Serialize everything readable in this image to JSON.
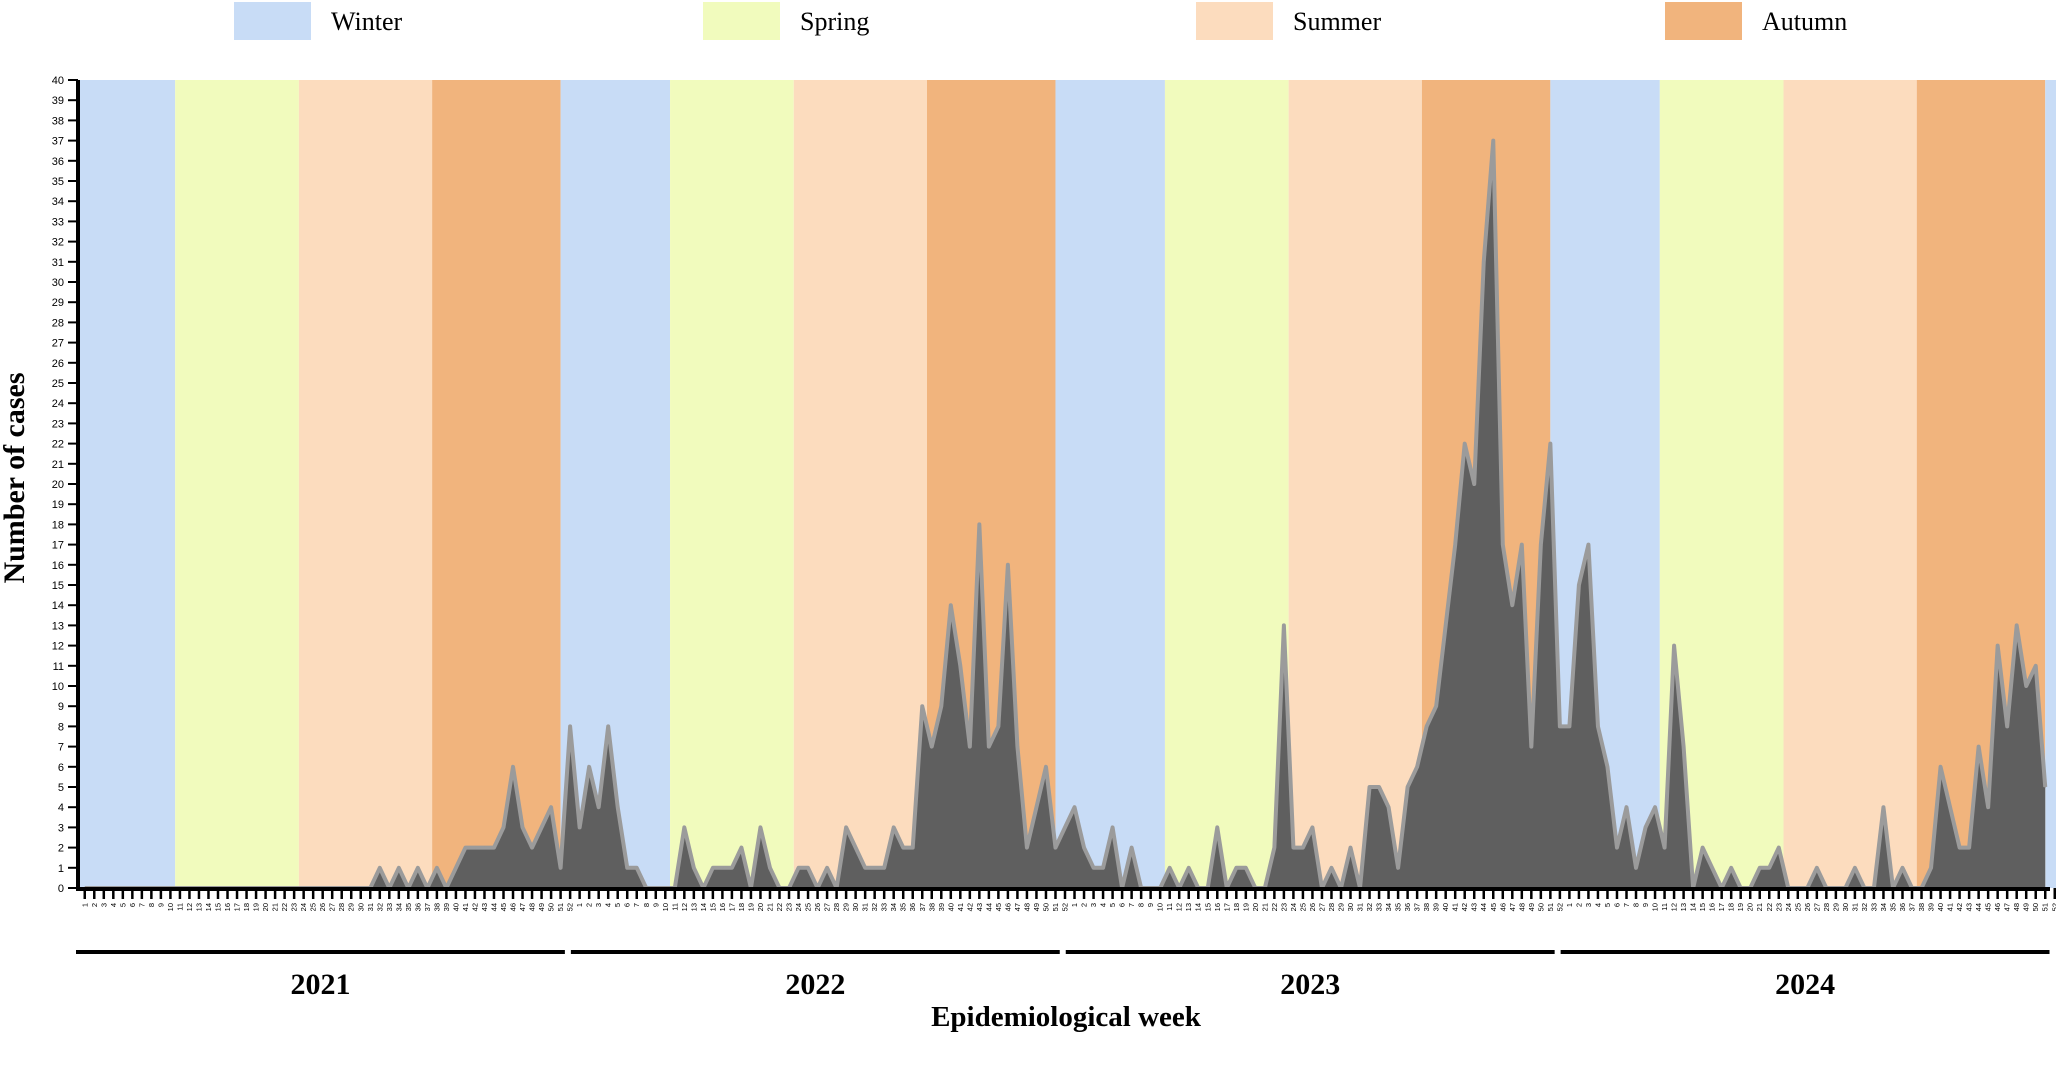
{
  "chart_data": {
    "type": "area",
    "xlabel": "Epidemiological week",
    "ylabel": "Number of cases",
    "ylim": [
      0,
      40
    ],
    "y_ticks": [
      0,
      1,
      2,
      3,
      4,
      5,
      6,
      7,
      8,
      9,
      10,
      11,
      12,
      13,
      14,
      15,
      16,
      17,
      18,
      19,
      20,
      21,
      22,
      23,
      24,
      25,
      26,
      27,
      28,
      29,
      30,
      31,
      32,
      33,
      34,
      35,
      36,
      37,
      38,
      39,
      40
    ],
    "grid": false,
    "legend_position": "top",
    "colors": {
      "area_fill": "#5f5f5f",
      "area_line": "#9b9b9b",
      "axis": "#000000"
    },
    "legend": [
      {
        "name": "Winter",
        "color": "#c8dcf6"
      },
      {
        "name": "Spring",
        "color": "#f1fbbd"
      },
      {
        "name": "Summer",
        "color": "#fcdcbe"
      },
      {
        "name": "Autumn",
        "color": "#f1b47d"
      }
    ],
    "years": [
      {
        "label": "2021",
        "weeks": 52
      },
      {
        "label": "2022",
        "weeks": 52
      },
      {
        "label": "2023",
        "weeks": 52
      },
      {
        "label": "2024",
        "weeks": 52
      }
    ],
    "trailing_weeks": [
      1
    ],
    "seasons": [
      {
        "season": "Winter",
        "start": 0,
        "end": 10
      },
      {
        "season": "Spring",
        "start": 10,
        "end": 23
      },
      {
        "season": "Summer",
        "start": 23,
        "end": 37
      },
      {
        "season": "Autumn",
        "start": 37,
        "end": 50.5
      },
      {
        "season": "Winter",
        "start": 50.5,
        "end": 62
      },
      {
        "season": "Spring",
        "start": 62,
        "end": 75
      },
      {
        "season": "Summer",
        "start": 75,
        "end": 89
      },
      {
        "season": "Autumn",
        "start": 89,
        "end": 102.5
      },
      {
        "season": "Winter",
        "start": 102.5,
        "end": 114
      },
      {
        "season": "Spring",
        "start": 114,
        "end": 127
      },
      {
        "season": "Summer",
        "start": 127,
        "end": 141
      },
      {
        "season": "Autumn",
        "start": 141,
        "end": 154.5
      },
      {
        "season": "Winter",
        "start": 154.5,
        "end": 166
      },
      {
        "season": "Spring",
        "start": 166,
        "end": 179
      },
      {
        "season": "Summer",
        "start": 179,
        "end": 193
      },
      {
        "season": "Autumn",
        "start": 193,
        "end": 206.5
      },
      {
        "season": "Winter",
        "start": 206.5,
        "end": 209
      }
    ],
    "series": [
      {
        "values": [
          0,
          0,
          0,
          0,
          0,
          0,
          0,
          0,
          0,
          0,
          0,
          0,
          0,
          0,
          0,
          0,
          0,
          0,
          0,
          0,
          0,
          0,
          0,
          0,
          0,
          0,
          0,
          0,
          0,
          0,
          0,
          1,
          0,
          1,
          0,
          1,
          0,
          1,
          0,
          1,
          2,
          2,
          2,
          2,
          3,
          6,
          3,
          2,
          3,
          4,
          1,
          8,
          3,
          6,
          4,
          8,
          4,
          1,
          1,
          0,
          0,
          0,
          0,
          3,
          1,
          0,
          1,
          1,
          1,
          2,
          0,
          3,
          1,
          0,
          0,
          1,
          1,
          0,
          1,
          0,
          3,
          2,
          1,
          1,
          1,
          3,
          2,
          2,
          9,
          7,
          9,
          14,
          11,
          7,
          18,
          7,
          8,
          16,
          7,
          2,
          4,
          6,
          2,
          3,
          4,
          2,
          1,
          1,
          3,
          0,
          2,
          0,
          0,
          0,
          1,
          0,
          1,
          0,
          0,
          3,
          0,
          1,
          1,
          0,
          0,
          2,
          13,
          2,
          2,
          3,
          0,
          1,
          0,
          2,
          0,
          5,
          5,
          4,
          1,
          5,
          6,
          8,
          9,
          13,
          17,
          22,
          20,
          31,
          37,
          17,
          14,
          17,
          7,
          17,
          22,
          8,
          8,
          15,
          17,
          8,
          6,
          2,
          4,
          1,
          3,
          4,
          2,
          12,
          7,
          0,
          2,
          1,
          0,
          1,
          0,
          0,
          1,
          1,
          2,
          0,
          0,
          0,
          1,
          0,
          0,
          0,
          1,
          0,
          0,
          4,
          0,
          1,
          0,
          0,
          1,
          6,
          4,
          2,
          2,
          7,
          4,
          12,
          8,
          13,
          10,
          11,
          5
        ]
      }
    ]
  }
}
